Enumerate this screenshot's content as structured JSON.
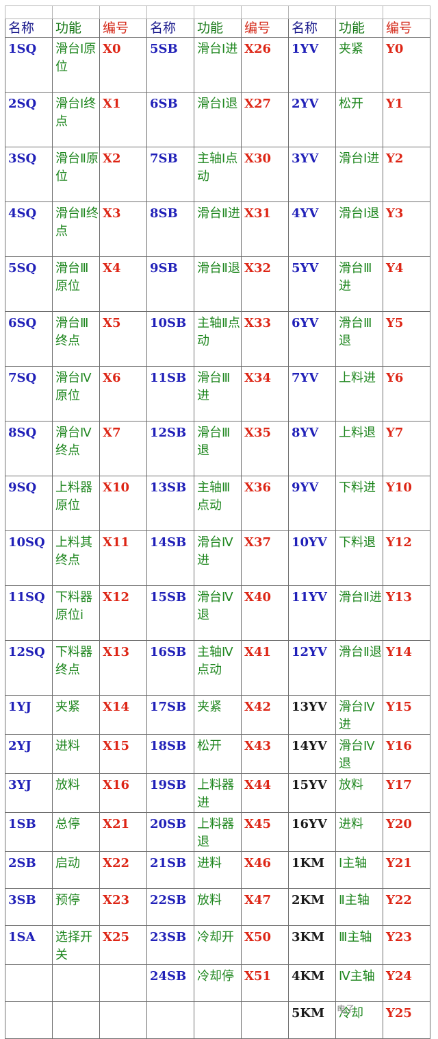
{
  "headers": [
    "名称",
    "功能",
    "编号",
    "名称",
    "功能",
    "编号",
    "名称",
    "功能",
    "编号"
  ],
  "rows": [
    [
      {
        "name": "1SQ",
        "func": "滑台Ⅰ原位",
        "num": "X0"
      },
      {
        "name": "5SB",
        "func": "滑台Ⅰ进",
        "num": "X26"
      },
      {
        "name": "1YV",
        "func": "夹紧",
        "num": "Y0"
      }
    ],
    [
      {
        "name": "2SQ",
        "func": "滑台Ⅰ终点",
        "num": "X1"
      },
      {
        "name": "6SB",
        "func": "滑台Ⅰ退",
        "num": "X27"
      },
      {
        "name": "2YV",
        "func": "松开",
        "num": "Y1"
      }
    ],
    [
      {
        "name": "3SQ",
        "func": "滑台Ⅱ原位",
        "num": "X2"
      },
      {
        "name": "7SB",
        "func": "主轴Ⅰ点动",
        "num": "X30"
      },
      {
        "name": "3YV",
        "func": "滑台Ⅰ进",
        "num": "Y2"
      }
    ],
    [
      {
        "name": "4SQ",
        "func": "滑台Ⅱ终点",
        "num": "X3"
      },
      {
        "name": "8SB",
        "func": "滑台Ⅱ进",
        "num": "X31"
      },
      {
        "name": "4YV",
        "func": "滑台Ⅰ退",
        "num": "Y3"
      }
    ],
    [
      {
        "name": "5SQ",
        "func": "滑台Ⅲ原位",
        "num": "X4"
      },
      {
        "name": "9SB",
        "func": "滑台Ⅱ退",
        "num": "X32"
      },
      {
        "name": "5YV",
        "func": "滑台Ⅲ进",
        "num": "Y4"
      }
    ],
    [
      {
        "name": "6SQ",
        "func": "滑台Ⅲ终点",
        "num": "X5"
      },
      {
        "name": "10SB",
        "func": "主轴Ⅱ点动",
        "num": "X33"
      },
      {
        "name": "6YV",
        "func": "滑台Ⅲ退",
        "num": "Y5"
      }
    ],
    [
      {
        "name": "7SQ",
        "func": "滑台Ⅳ原位",
        "num": "X6"
      },
      {
        "name": "11SB",
        "func": "滑台Ⅲ进",
        "num": "X34"
      },
      {
        "name": "7YV",
        "func": "上料进",
        "num": "Y6"
      }
    ],
    [
      {
        "name": "8SQ",
        "func": "滑台Ⅳ终点",
        "num": "X7"
      },
      {
        "name": "12SB",
        "func": "滑台Ⅲ退",
        "num": "X35"
      },
      {
        "name": "8YV",
        "func": "上料退",
        "num": "Y7"
      }
    ],
    [
      {
        "name": "9SQ",
        "func": "上料器原位",
        "num": "X10"
      },
      {
        "name": "13SB",
        "func": "主轴Ⅲ点动",
        "num": "X36"
      },
      {
        "name": "9YV",
        "func": "下料进",
        "num": "Y10"
      }
    ],
    [
      {
        "name": "10SQ",
        "func": "上料其终点",
        "num": "X11"
      },
      {
        "name": "14SB",
        "func": "滑台Ⅳ进",
        "num": "X37"
      },
      {
        "name": "10YV",
        "func": "下料退",
        "num": "Y12"
      }
    ],
    [
      {
        "name": "11SQ",
        "func": "下料器原位i",
        "num": "X12"
      },
      {
        "name": "15SB",
        "func": "滑台Ⅳ退",
        "num": "X40"
      },
      {
        "name": "11YV",
        "func": "滑台Ⅱ进",
        "num": "Y13"
      }
    ],
    [
      {
        "name": "12SQ",
        "func": "下料器终点",
        "num": "X13"
      },
      {
        "name": "16SB",
        "func": "主轴Ⅳ点动",
        "num": "X41"
      },
      {
        "name": "12YV",
        "func": "滑台Ⅱ退",
        "num": "Y14"
      }
    ],
    [
      {
        "name": "1YJ",
        "func": "夹紧",
        "num": "X14"
      },
      {
        "name": "17SB",
        "func": "夹紧",
        "num": "X42"
      },
      {
        "name": "13YV",
        "func": "滑台Ⅳ进",
        "num": "Y15"
      }
    ],
    [
      {
        "name": "2YJ",
        "func": "进料",
        "num": "X15"
      },
      {
        "name": "18SB",
        "func": "松开",
        "num": "X43"
      },
      {
        "name": "14YV",
        "func": "滑台Ⅳ退",
        "num": "Y16"
      }
    ],
    [
      {
        "name": "3YJ",
        "func": "放料",
        "num": "X16"
      },
      {
        "name": "19SB",
        "func": "上料器进",
        "num": "X44"
      },
      {
        "name": "15YV",
        "func": "放料",
        "num": "Y17"
      }
    ],
    [
      {
        "name": "1SB",
        "func": "总停",
        "num": "X21"
      },
      {
        "name": "20SB",
        "func": "上料器退",
        "num": "X45"
      },
      {
        "name": "16YV",
        "func": "进料",
        "num": "Y20"
      }
    ],
    [
      {
        "name": "2SB",
        "func": "启动",
        "num": "X22"
      },
      {
        "name": "21SB",
        "func": "进料",
        "num": "X46"
      },
      {
        "name": "1KM",
        "func": "Ⅰ主轴",
        "num": "Y21"
      }
    ],
    [
      {
        "name": "3SB",
        "func": "预停",
        "num": "X23"
      },
      {
        "name": "22SB",
        "func": "放料",
        "num": "X47"
      },
      {
        "name": "2KM",
        "func": "Ⅱ主轴",
        "num": "Y22"
      }
    ],
    [
      {
        "name": "1SA",
        "func": "选择开关",
        "num": "X25"
      },
      {
        "name": "23SB",
        "func": "冷却开",
        "num": "X50"
      },
      {
        "name": "3KM",
        "func": "Ⅲ主轴",
        "num": "Y23"
      }
    ],
    [
      {
        "name": "",
        "func": "",
        "num": ""
      },
      {
        "name": "24SB",
        "func": "冷却停",
        "num": "X51"
      },
      {
        "name": "4KM",
        "func": "Ⅳ主轴",
        "num": "Y24"
      }
    ],
    [
      {
        "name": "",
        "func": "",
        "num": ""
      },
      {
        "name": "",
        "func": "",
        "num": ""
      },
      {
        "name": "5KM",
        "func": "冷却",
        "num": "Y25"
      }
    ]
  ],
  "watermark": "电子"
}
